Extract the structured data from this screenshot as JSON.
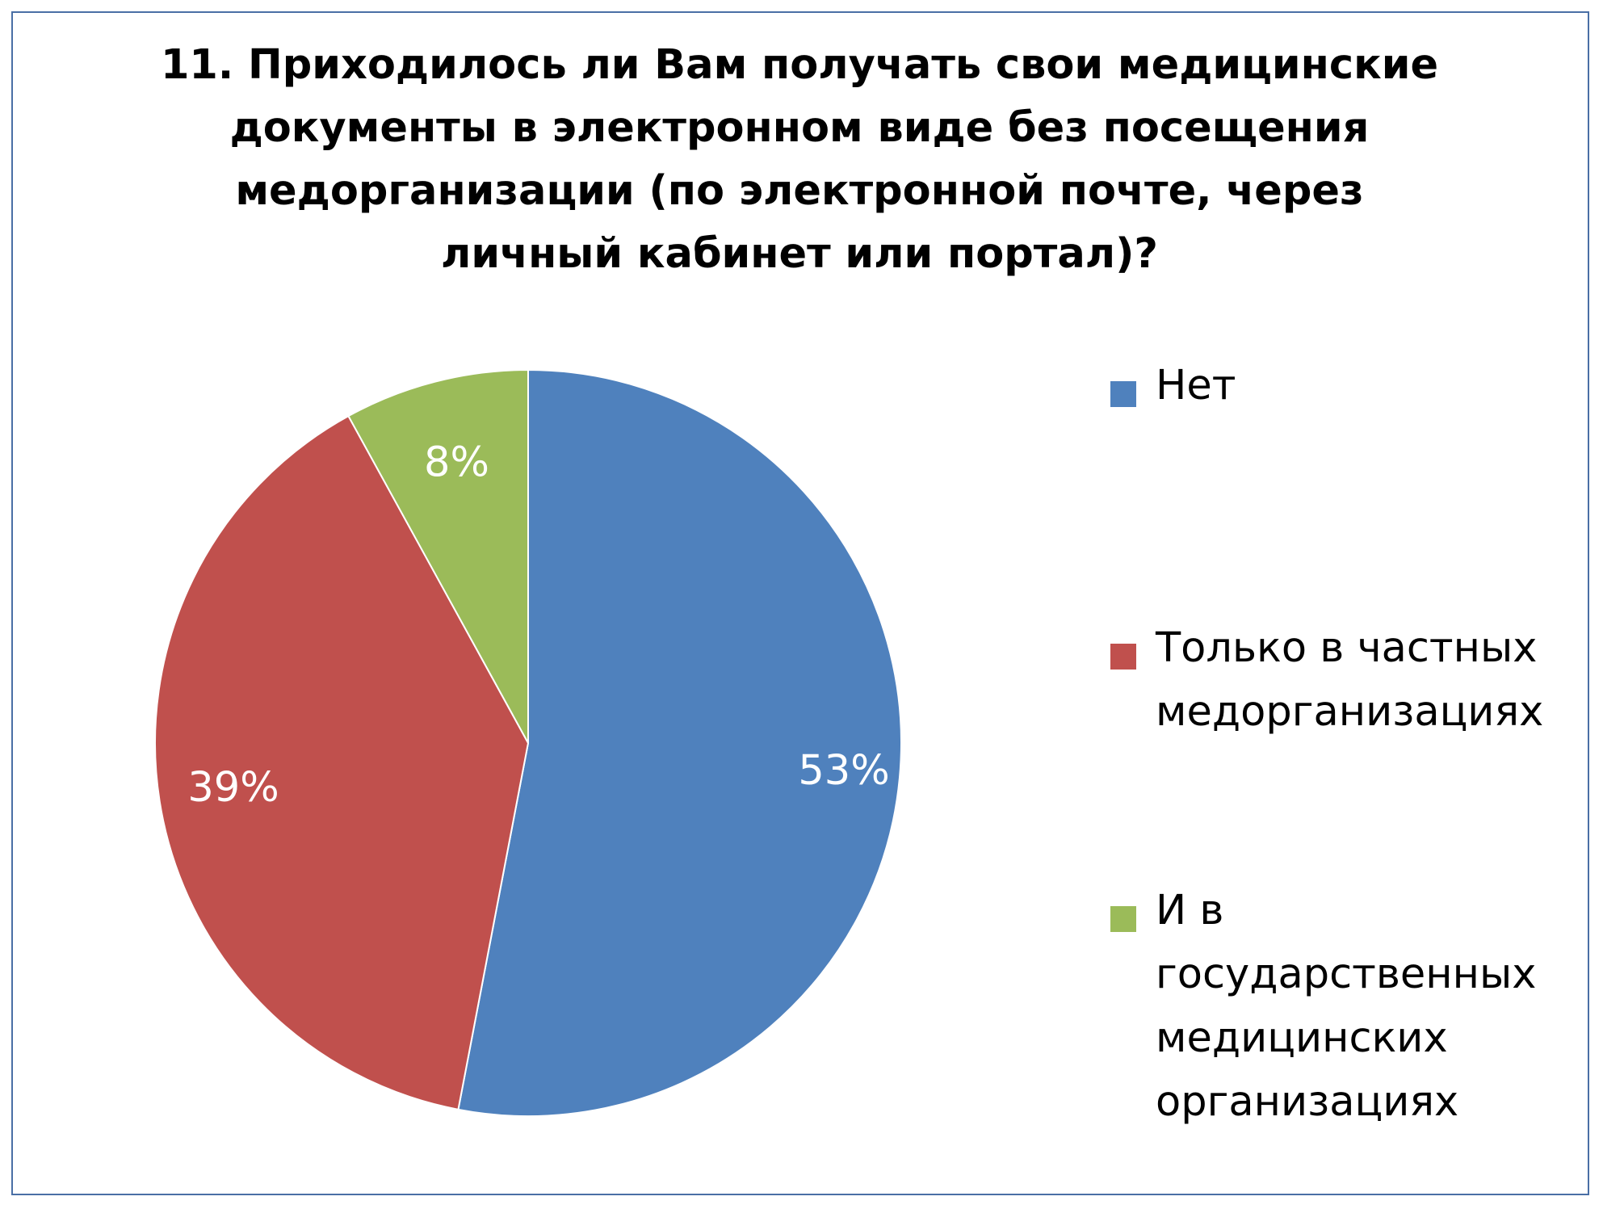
{
  "chart_data": {
    "type": "pie",
    "title_lines": [
      "11. Приходилось ли Вам получать свои медицинские",
      "документы в электронном виде без посещения",
      "медорганизации (по электронной почте, через",
      "личный кабинет или портал)?"
    ],
    "slices": [
      {
        "label_lines": [
          "Нет"
        ],
        "value": 53,
        "display": "53%",
        "color": "#4f81bd"
      },
      {
        "label_lines": [
          "Только в частных",
          "медорганизациях"
        ],
        "value": 39,
        "display": "39%",
        "color": "#c0504d"
      },
      {
        "label_lines": [
          "И в",
          "государственных",
          "медицинских",
          "организациях"
        ],
        "value": 8,
        "display": "8%",
        "color": "#9bbb59"
      }
    ],
    "legend_position": "right",
    "start": "12 o'clock",
    "direction": "clockwise"
  }
}
